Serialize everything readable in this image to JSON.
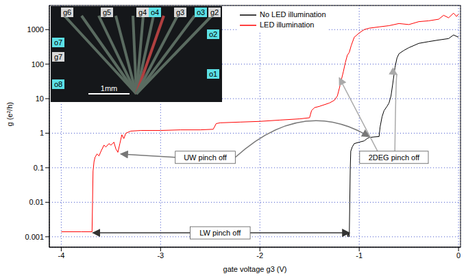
{
  "chart_data": {
    "type": "line",
    "xlabel": "gate voltage g3 (V)",
    "ylabel": "g (e²/h)",
    "log": "y",
    "grid": true,
    "legend": "upper center",
    "xlim": [
      -4.12,
      0.02
    ],
    "xticks": [
      -4,
      -3,
      -2,
      -1,
      0
    ],
    "ylim": [
      0.0005,
      5000
    ],
    "yticks": [
      0.001,
      0.01,
      0.1,
      1,
      10,
      100,
      1000
    ],
    "series": [
      {
        "name": "No LED illumination",
        "color": "#000000",
        "x": [
          -1.12,
          -1.115,
          -1.11,
          -1.1,
          -1.095,
          -1.09,
          -1.085,
          -1.07,
          -1.05,
          -1.0,
          -0.95,
          -0.92,
          -0.9,
          -0.85,
          -0.8,
          -0.79,
          -0.77,
          -0.75,
          -0.72,
          -0.7,
          -0.68,
          -0.66,
          -0.64,
          -0.62,
          -0.6,
          -0.55,
          -0.5,
          -0.4,
          -0.3,
          -0.2,
          -0.1,
          -0.05,
          0
        ],
        "values": [
          0.0012,
          0.001,
          0.0013,
          0.001,
          0.01,
          0.1,
          0.3,
          0.4,
          0.5,
          0.55,
          0.6,
          0.7,
          0.75,
          0.78,
          0.8,
          1.5,
          3,
          4.5,
          6,
          7.5,
          12,
          30,
          80,
          150,
          200,
          250,
          300,
          400,
          450,
          500,
          550,
          700,
          600
        ]
      },
      {
        "name": "LED illumination",
        "color": "#ff0000",
        "x": [
          -4.0,
          -3.8,
          -3.69,
          -3.685,
          -3.68,
          -3.67,
          -3.66,
          -3.64,
          -3.62,
          -3.6,
          -3.57,
          -3.55,
          -3.52,
          -3.5,
          -3.47,
          -3.45,
          -3.43,
          -3.41,
          -3.39,
          -3.37,
          -3.35,
          -3.3,
          -3.2,
          -3.0,
          -2.8,
          -2.6,
          -2.47,
          -2.44,
          -2.4,
          -2.2,
          -2.0,
          -1.8,
          -1.6,
          -1.5,
          -1.48,
          -1.45,
          -1.4,
          -1.3,
          -1.25,
          -1.22,
          -1.2,
          -1.18,
          -1.16,
          -1.14,
          -1.12,
          -1.1,
          -1.08,
          -1.05,
          -1.0,
          -0.95,
          -0.9,
          -0.8,
          -0.7,
          -0.6,
          -0.5,
          -0.4,
          -0.3,
          -0.2,
          -0.15,
          -0.1,
          -0.05,
          -0.02,
          0
        ],
        "values": [
          0.0014,
          0.0014,
          0.0014,
          0.01,
          0.08,
          0.15,
          0.2,
          0.25,
          0.22,
          0.3,
          0.45,
          0.4,
          0.5,
          0.45,
          0.55,
          0.35,
          0.28,
          0.5,
          0.9,
          0.7,
          1.0,
          1.15,
          1.2,
          1.2,
          1.25,
          1.25,
          1.3,
          1.9,
          2.0,
          2.1,
          2.2,
          2.4,
          2.6,
          2.8,
          4.5,
          5.5,
          6,
          7.5,
          9,
          12,
          20,
          35,
          60,
          110,
          180,
          220,
          350,
          600,
          800,
          1000,
          1100,
          1200,
          1300,
          1500,
          1400,
          1700,
          1800,
          2000,
          2600,
          2200,
          3000,
          2400,
          2800
        ]
      }
    ],
    "annotations": [
      {
        "text": "UW pinch off",
        "x": -2.55,
        "y": 0.2,
        "color": "#777777",
        "arrows": [
          {
            "x": -3.4,
            "y": 0.25
          },
          {
            "x": -0.9,
            "y": 0.8
          }
        ]
      },
      {
        "text": "2DEG pinch off",
        "x": -0.65,
        "y": 0.2,
        "color": "#aaaaaa",
        "arrows": [
          {
            "x": -1.2,
            "y": 40
          },
          {
            "x": -0.62,
            "y": 50
          }
        ]
      },
      {
        "text": "LW pinch off",
        "x": -2.4,
        "y": 0.0013,
        "color": "#333333",
        "arrows": [
          {
            "x": -3.68,
            "y": 0.0013
          },
          {
            "x": -1.1,
            "y": 0.0013
          }
        ]
      }
    ],
    "inset": {
      "scale_bar": "1mm",
      "labels": [
        {
          "text": "g6",
          "color": "#d9d9d9"
        },
        {
          "text": "g5",
          "color": "#d9d9d9"
        },
        {
          "text": "g4",
          "color": "#d9d9d9"
        },
        {
          "text": "o4",
          "color": "#5ce1e6"
        },
        {
          "text": "g3",
          "color": "#d9d9d9"
        },
        {
          "text": "o3",
          "color": "#5ce1e6"
        },
        {
          "text": "g2",
          "color": "#d9d9d9"
        },
        {
          "text": "o7",
          "color": "#5ce1e6"
        },
        {
          "text": "g7",
          "color": "#d9d9d9"
        },
        {
          "text": "o8",
          "color": "#5ce1e6"
        },
        {
          "text": "o2",
          "color": "#5ce1e6"
        },
        {
          "text": "o1",
          "color": "#5ce1e6"
        }
      ]
    }
  }
}
